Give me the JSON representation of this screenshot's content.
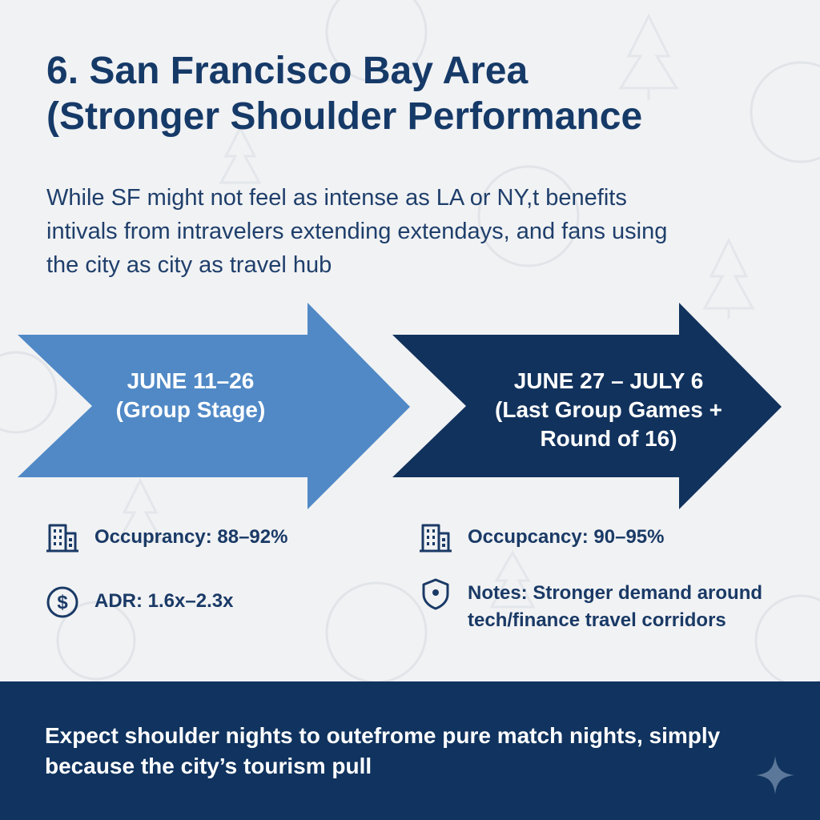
{
  "title": {
    "line1": "6. San Francisco Bay Area",
    "line2": "(Stronger Shoulder Performance"
  },
  "intro": {
    "line1": "While SF might not feel as intense as LA or NY,t benefits",
    "line2": "intivals from intravelers extending extendays, and fans using",
    "line3": "the city as city as travel hub"
  },
  "colors": {
    "arrow_light": "#5089c6",
    "arrow_dark": "#11325d",
    "footer": "#10335f",
    "text": "#163a68"
  },
  "phases": [
    {
      "dates": "JUNE 11–26",
      "subtitle": "(Group Stage)",
      "stats": [
        {
          "icon": "building-icon",
          "text": "Occuprancy: 88–92%"
        },
        {
          "icon": "dollar-icon",
          "text": "ADR: 1.6x–2.3x"
        }
      ]
    },
    {
      "dates": "JUNE 27 – JULY 6",
      "subtitle_line1": "(Last Group Games +",
      "subtitle_line2": "Round of 16)",
      "stats": [
        {
          "icon": "building-icon",
          "text": "Occupcancy: 90–95%"
        },
        {
          "icon": "shield-icon",
          "text_line1": "Notes: Stronger demand around",
          "text_line2": "tech/finance travel corridors"
        }
      ]
    }
  ],
  "footer": {
    "line1": "Expect shoulder nights to outefrome pure match nights, simply",
    "line2": "because the city’s tourism pull"
  }
}
